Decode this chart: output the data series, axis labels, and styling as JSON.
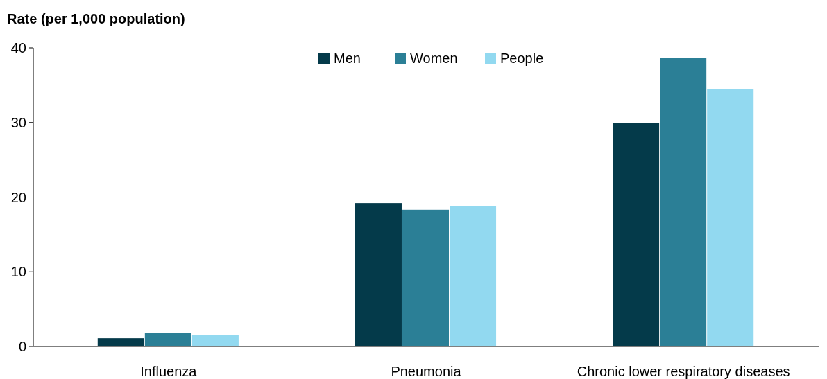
{
  "chart_data": {
    "type": "bar",
    "ylabel": "Rate (per 1,000 population)",
    "categories": [
      "Influenza",
      "Pneumonia",
      "Chronic lower respiratory diseases"
    ],
    "series": [
      {
        "name": "Men",
        "color": "#043a4a",
        "values": [
          1.1,
          19.2,
          29.9
        ]
      },
      {
        "name": "Women",
        "color": "#2b7f96",
        "values": [
          1.8,
          18.3,
          38.7
        ]
      },
      {
        "name": "People",
        "color": "#92d9f0",
        "values": [
          1.5,
          18.8,
          34.5
        ]
      }
    ],
    "ylim": [
      0,
      40
    ],
    "yticks": [
      0,
      10,
      20,
      30,
      40
    ],
    "grid": false,
    "legend": "top"
  }
}
